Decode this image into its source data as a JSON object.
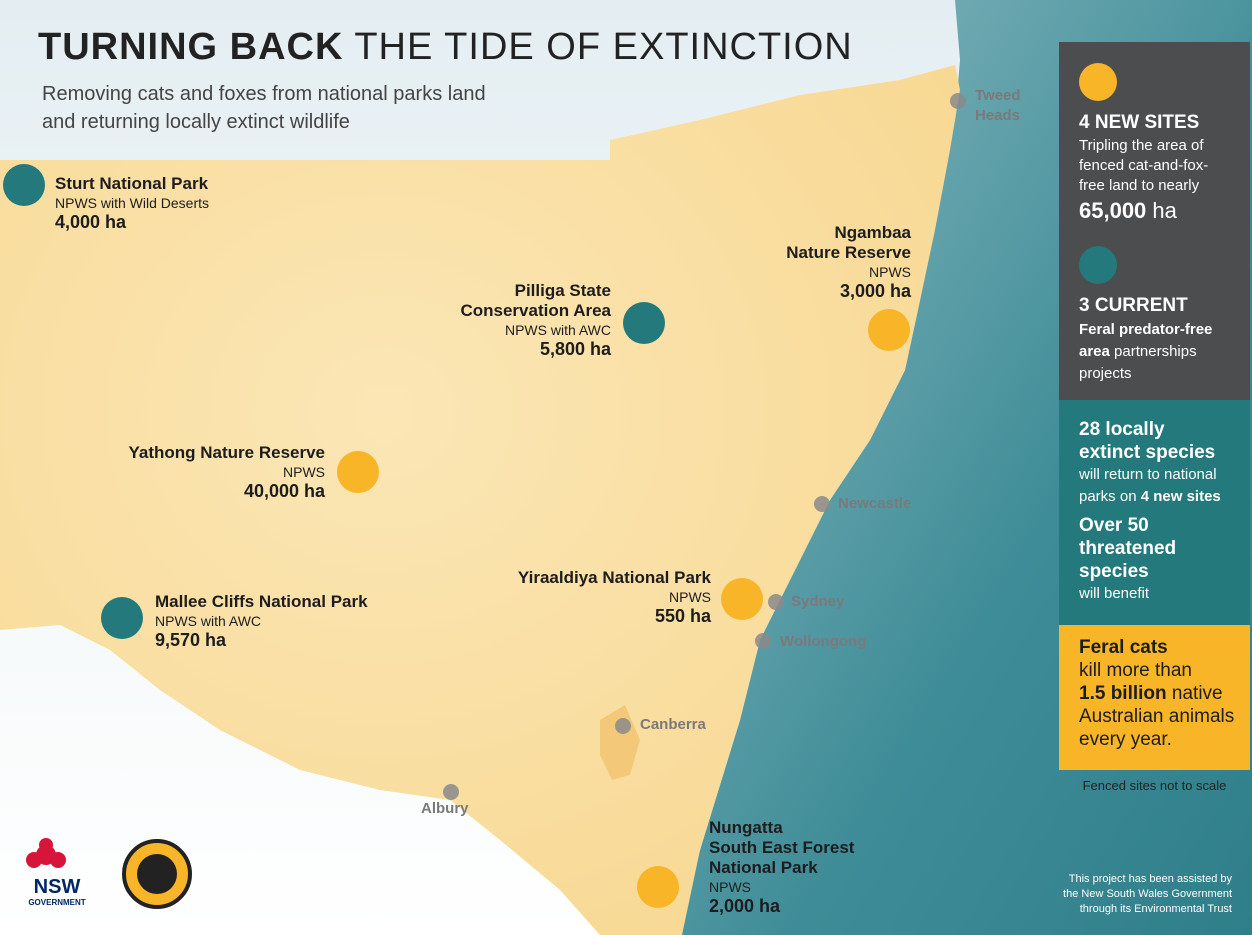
{
  "header": {
    "title_bold": "TURNING BACK",
    "title_rest": "THE TIDE OF EXTINCTION",
    "subtitle_lines": [
      "Removing cats and foxes from national parks land",
      "and returning locally extinct wildlife"
    ]
  },
  "status_colors": {
    "new": "#f8b527",
    "current": "#23797b"
  },
  "sites": [
    {
      "name_lines": [
        "Sturt National Park"
      ],
      "partner": "NPWS with Wild Deserts",
      "area": "4,000 ha",
      "status": "current"
    },
    {
      "name_lines": [
        "Pilliga State",
        "Conservation Area"
      ],
      "partner": "NPWS with AWC",
      "area": "5,800 ha",
      "status": "current"
    },
    {
      "name_lines": [
        "Ngambaa",
        "Nature Reserve"
      ],
      "partner": "NPWS",
      "area": "3,000 ha",
      "status": "new"
    },
    {
      "name_lines": [
        "Yathong Nature Reserve"
      ],
      "partner": "NPWS",
      "area": "40,000 ha",
      "status": "new"
    },
    {
      "name_lines": [
        "Mallee Cliffs National Park"
      ],
      "partner": "NPWS with AWC",
      "area": "9,570 ha",
      "status": "current"
    },
    {
      "name_lines": [
        "Yiraaldiya National Park"
      ],
      "partner": "NPWS",
      "area": "550 ha",
      "status": "new"
    },
    {
      "name_lines": [
        "Nungatta",
        "South East Forest",
        "National Park"
      ],
      "partner": "NPWS",
      "area": "2,000 ha",
      "status": "new"
    }
  ],
  "towns": [
    {
      "label_lines": [
        "Tweed",
        "Heads"
      ]
    },
    {
      "label_lines": [
        "Newcastle"
      ]
    },
    {
      "label_lines": [
        "Sydney"
      ]
    },
    {
      "label_lines": [
        "Wollongong"
      ]
    },
    {
      "label_lines": [
        "Canberra"
      ]
    },
    {
      "label_lines": [
        "Albury"
      ]
    }
  ],
  "sidebar": {
    "new_sites": {
      "heading": "4 NEW SITES",
      "text": "Tripling the area of fenced cat-and-fox-free land to nearly",
      "figure": "65,000",
      "unit": "ha"
    },
    "current": {
      "heading": "3 CURRENT",
      "bold": "Feral predator-free area",
      "text": "partnerships projects"
    },
    "species": {
      "bold1": "28 locally extinct species",
      "text1": "will return to national parks on",
      "bold2": "4 new sites",
      "bold3": "Over 50 threatened species",
      "text3": "will benefit"
    },
    "cats": {
      "bold1": "Feral cats",
      "text1": "kill more than",
      "bold2": "1.5 billion",
      "text2": "native Australian animals every year."
    },
    "scale_note": "Fenced sites not to scale"
  },
  "footer": {
    "credit_lines": [
      "This project has been assisted by",
      "the New South Wales Government",
      "through its Environmental Trust"
    ]
  },
  "logos": {
    "nsw": "NSW",
    "nsw_sub": "GOVERNMENT"
  }
}
